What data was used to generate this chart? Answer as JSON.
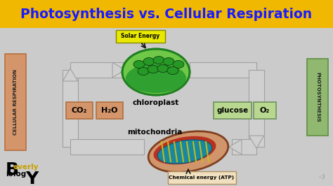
{
  "title": "Photosynthesis vs. Cellular Respiration",
  "title_bg": "#f0b800",
  "title_color": "#1a1aff",
  "bg_color": "#d8d8d8",
  "solar_energy_label": "Solar Energy",
  "solar_energy_bg": "#e8e800",
  "chloroplast_label": "chloroplast",
  "mitochondria_label": "mitochondria",
  "chemical_energy_label": "Chemical energy (ATP)",
  "chemical_energy_bg": "#f0e0c0",
  "co2_label": "CO₂",
  "h2o_label": "H₂O",
  "glucose_label": "glucose",
  "o2_label": "O₂",
  "left_side_label": "CELLULAR RESPIRATION",
  "left_side_bg": "#d4956a",
  "left_side_edge": "#b87040",
  "right_side_label": "PHOTOSYNTHESIS",
  "right_side_bg": "#90b870",
  "right_side_edge": "#609040",
  "arrow_fill": "#d0d0d0",
  "arrow_edge": "#a0a0a0",
  "box_co2_bg": "#d4956a",
  "box_co2_edge": "#b07040",
  "box_h2o_bg": "#d4956a",
  "box_h2o_edge": "#b07040",
  "box_glucose_bg": "#b8d890",
  "box_glucose_edge": "#709060",
  "box_o2_bg": "#b8d890",
  "box_o2_edge": "#709060",
  "chloro_outer": "#50b850",
  "chloro_outer_edge": "#208020",
  "chloro_inner": "#30a030",
  "chloro_thylakoid": "#209820",
  "chloro_thylakoid_edge": "#107010",
  "mito_outer": "#d0956a",
  "mito_outer_edge": "#905030",
  "mito_red": "#c03020",
  "mito_teal": "#2090a0",
  "mito_yellow": "#d0c020",
  "watermark_B_color": "#000000",
  "watermark_everly_color": "#c8a000",
  "watermark_biology_color": "#000000",
  "watermark_Y_color": "#000000"
}
